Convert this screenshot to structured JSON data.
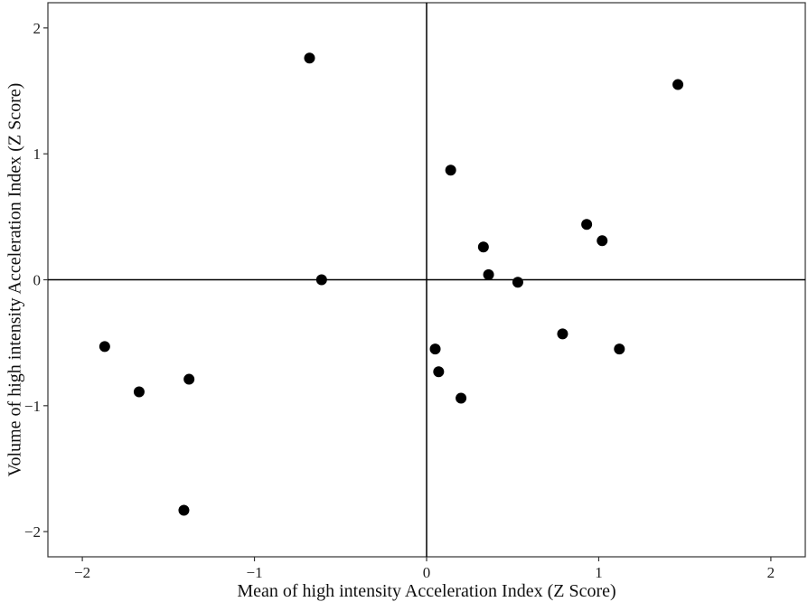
{
  "chart_data": {
    "type": "scatter",
    "title": "",
    "xlabel": "Mean of high intensity Acceleration Index (Z Score)",
    "ylabel": "Volume of high intensity Acceleration Index (Z Score)",
    "xlim": [
      -2.2,
      2.2
    ],
    "ylim": [
      -2.2,
      2.2
    ],
    "xticks": [
      -2,
      -1,
      0,
      1,
      2
    ],
    "yticks": [
      -2,
      -1,
      0,
      1,
      2
    ],
    "xtick_labels": [
      "−2",
      "−1",
      "0",
      "1",
      "2"
    ],
    "ytick_labels": [
      "−2",
      "−1",
      "0",
      "1",
      "2"
    ],
    "grid": false,
    "reference_lines": {
      "x": 0,
      "y": 0
    },
    "point_color": "#000000",
    "points": [
      {
        "x": -0.68,
        "y": 1.76
      },
      {
        "x": 1.46,
        "y": 1.55
      },
      {
        "x": 0.14,
        "y": 0.87
      },
      {
        "x": 0.93,
        "y": 0.44
      },
      {
        "x": 1.02,
        "y": 0.31
      },
      {
        "x": 0.33,
        "y": 0.26
      },
      {
        "x": 0.36,
        "y": 0.04
      },
      {
        "x": 0.53,
        "y": -0.02
      },
      {
        "x": -0.61,
        "y": 0.0
      },
      {
        "x": 0.79,
        "y": -0.43
      },
      {
        "x": 0.05,
        "y": -0.55
      },
      {
        "x": 1.12,
        "y": -0.55
      },
      {
        "x": 0.07,
        "y": -0.73
      },
      {
        "x": 0.2,
        "y": -0.94
      },
      {
        "x": -1.87,
        "y": -0.53
      },
      {
        "x": -1.67,
        "y": -0.89
      },
      {
        "x": -1.38,
        "y": -0.79
      },
      {
        "x": -1.41,
        "y": -1.83
      }
    ]
  }
}
